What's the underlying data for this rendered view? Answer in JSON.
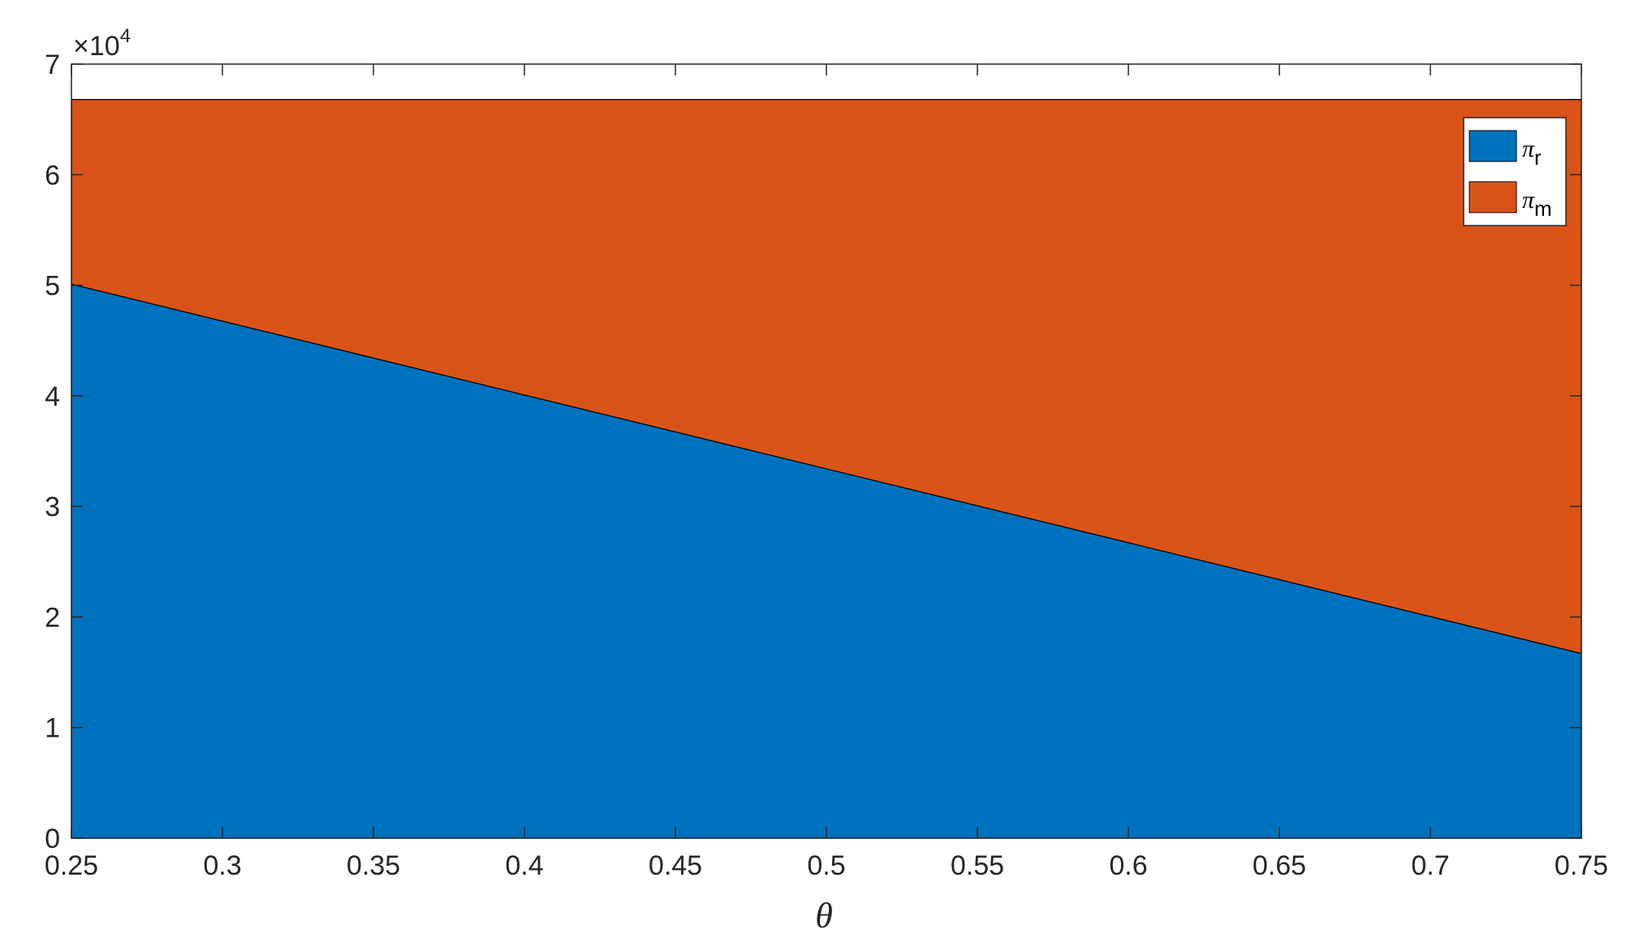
{
  "chart_data": {
    "type": "area",
    "stacked": true,
    "x": [
      0.25,
      0.75
    ],
    "series": [
      {
        "name": "π_r",
        "symbol": "π",
        "subscript": "r",
        "values": [
          50100,
          16700
        ],
        "color": "#0072BD"
      },
      {
        "name": "π_m",
        "symbol": "π",
        "subscript": "m",
        "values": [
          16700,
          50100
        ],
        "color": "#D95319"
      }
    ],
    "title": "",
    "xlabel": "θ",
    "ylabel": "",
    "xlim": [
      0.25,
      0.75
    ],
    "ylim": [
      0,
      70000
    ],
    "y_exponent_label": {
      "base": "×10",
      "power": "4"
    },
    "x_ticks": [
      0.25,
      0.3,
      0.35,
      0.4,
      0.45,
      0.5,
      0.55,
      0.6,
      0.65,
      0.7,
      0.75
    ],
    "x_tick_labels": [
      "0.25",
      "0.3",
      "0.35",
      "0.4",
      "0.45",
      "0.5",
      "0.55",
      "0.6",
      "0.65",
      "0.7",
      "0.75"
    ],
    "y_ticks": [
      0,
      10000,
      20000,
      30000,
      40000,
      50000,
      60000,
      70000
    ],
    "y_tick_labels": [
      "0",
      "1",
      "2",
      "3",
      "4",
      "5",
      "6",
      "7"
    ],
    "grid": false,
    "legend_position": "top-right"
  }
}
